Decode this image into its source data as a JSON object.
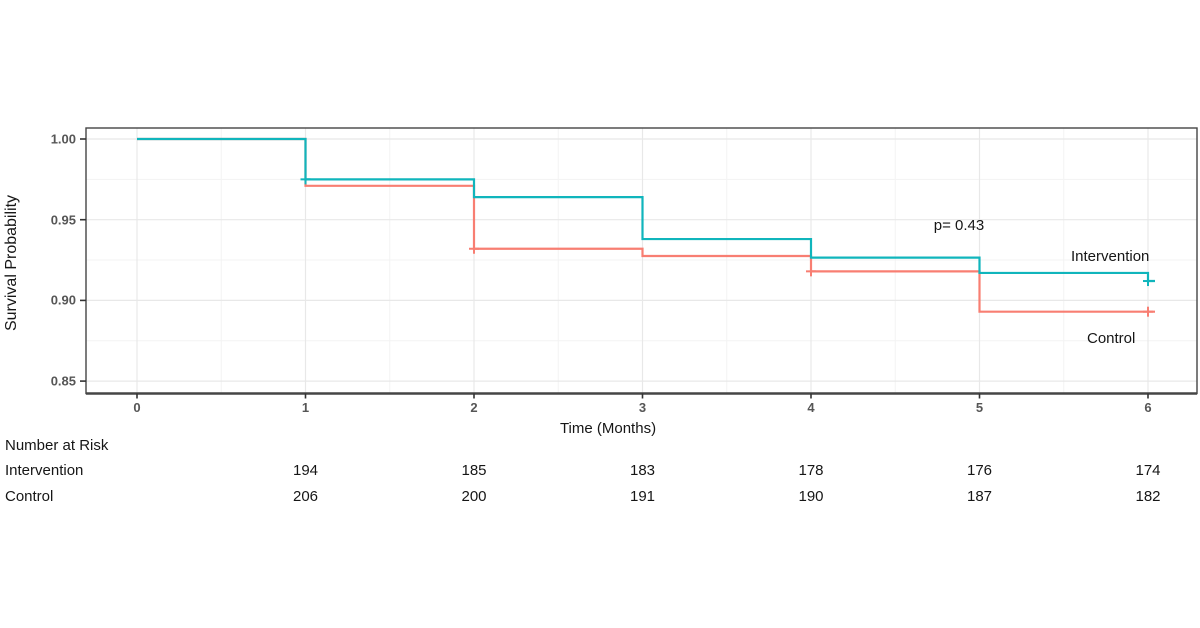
{
  "figure": {
    "background": "#ffffff"
  },
  "chart_data": {
    "type": "line",
    "variant": "kaplan-meier-step-survival",
    "title": "",
    "xlabel": "Time (Months)",
    "ylabel": "Survival Probability",
    "xlim": [
      0,
      6
    ],
    "ylim": [
      0.85,
      1.0
    ],
    "grid": "major gridlines at 1-month / 0.05 intervals, minor at 0.5-month / 0.025 intervals, light gray on white",
    "legend_position": "labels at right end of curves",
    "x_ticks": [
      0,
      1,
      2,
      3,
      4,
      5,
      6
    ],
    "y_ticks": [
      {
        "label": "1.00",
        "value": 1.0
      },
      {
        "label": "0.95",
        "value": 0.95
      },
      {
        "label": "0.90",
        "value": 0.9
      },
      {
        "label": "0.85",
        "value": 0.85
      }
    ],
    "annotations": {
      "p_value": "p= 0.43"
    },
    "series": [
      {
        "name": "Control",
        "color": "#f87e72",
        "steps": [
          [
            0,
            1.0
          ],
          [
            1,
            0.971
          ],
          [
            2,
            0.932
          ],
          [
            3,
            0.9275
          ],
          [
            4,
            0.918
          ],
          [
            5,
            0.893
          ],
          [
            6,
            0.893
          ]
        ],
        "censors": [
          [
            2,
            0.932
          ],
          [
            4,
            0.918
          ],
          [
            6,
            0.893
          ]
        ]
      },
      {
        "name": "Intervention",
        "color": "#10b5bc",
        "steps": [
          [
            0,
            1.0
          ],
          [
            1,
            0.975
          ],
          [
            2,
            0.964
          ],
          [
            3,
            0.938
          ],
          [
            4,
            0.9265
          ],
          [
            5,
            0.917
          ],
          [
            6,
            0.912
          ]
        ],
        "censors": [
          [
            1,
            0.975
          ],
          [
            6,
            0.912
          ]
        ]
      }
    ]
  },
  "risk_table": {
    "title": "Number at Risk",
    "time_points": [
      1,
      2,
      3,
      4,
      5,
      6
    ],
    "rows": [
      {
        "name": "Intervention",
        "values": [
          194,
          185,
          183,
          178,
          176,
          174
        ]
      },
      {
        "name": "Control",
        "values": [
          206,
          200,
          191,
          190,
          187,
          182
        ]
      }
    ]
  }
}
